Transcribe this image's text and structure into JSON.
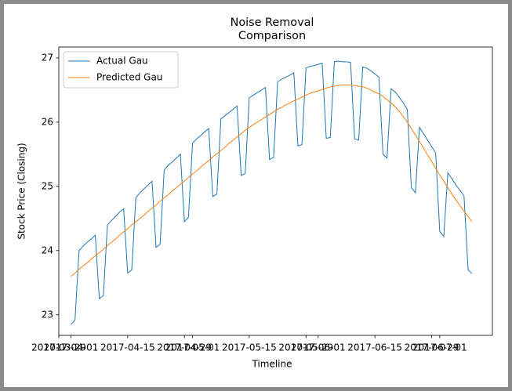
{
  "chart_data": {
    "type": "line",
    "title": "Noise Removal\nComparison",
    "x_label": "Timeline",
    "y_label": "Stock Price (Closing)",
    "x": [
      "2017-04-01",
      "2017-04-02",
      "2017-04-03",
      "2017-04-04",
      "2017-04-05",
      "2017-04-06",
      "2017-04-07",
      "2017-04-08",
      "2017-04-09",
      "2017-04-10",
      "2017-04-11",
      "2017-04-12",
      "2017-04-13",
      "2017-04-14",
      "2017-04-15",
      "2017-04-16",
      "2017-04-17",
      "2017-04-18",
      "2017-04-19",
      "2017-04-20",
      "2017-04-21",
      "2017-04-22",
      "2017-04-23",
      "2017-04-24",
      "2017-04-25",
      "2017-04-26",
      "2017-04-27",
      "2017-04-28",
      "2017-04-29",
      "2017-04-30",
      "2017-05-01",
      "2017-05-02",
      "2017-05-03",
      "2017-05-04",
      "2017-05-05",
      "2017-05-06",
      "2017-05-07",
      "2017-05-08",
      "2017-05-09",
      "2017-05-10",
      "2017-05-11",
      "2017-05-12",
      "2017-05-13",
      "2017-05-14",
      "2017-05-15",
      "2017-05-16",
      "2017-05-17",
      "2017-05-18",
      "2017-05-19",
      "2017-05-20",
      "2017-05-21",
      "2017-05-22",
      "2017-05-23",
      "2017-05-24",
      "2017-05-25",
      "2017-05-26",
      "2017-05-27",
      "2017-05-28",
      "2017-05-29",
      "2017-05-30",
      "2017-05-31",
      "2017-06-01",
      "2017-06-02",
      "2017-06-03",
      "2017-06-04",
      "2017-06-05",
      "2017-06-06",
      "2017-06-07",
      "2017-06-08",
      "2017-06-09",
      "2017-06-10",
      "2017-06-11",
      "2017-06-12",
      "2017-06-13",
      "2017-06-14",
      "2017-06-15",
      "2017-06-16",
      "2017-06-17",
      "2017-06-18",
      "2017-06-19",
      "2017-06-20",
      "2017-06-21",
      "2017-06-22",
      "2017-06-23",
      "2017-06-24",
      "2017-06-25",
      "2017-06-26",
      "2017-06-27",
      "2017-06-28",
      "2017-06-29",
      "2017-06-30",
      "2017-07-01",
      "2017-07-02",
      "2017-07-03",
      "2017-07-04",
      "2017-07-05",
      "2017-07-06",
      "2017-07-07",
      "2017-07-08",
      "2017-07-09"
    ],
    "series": [
      {
        "name": "Actual Gau",
        "color": "#1f77b4",
        "values": [
          22.85,
          22.92,
          24.0,
          24.07,
          24.13,
          24.18,
          24.24,
          23.25,
          23.3,
          24.4,
          24.47,
          24.53,
          24.6,
          24.65,
          23.65,
          23.7,
          24.82,
          24.9,
          24.96,
          25.02,
          25.08,
          24.05,
          24.1,
          25.25,
          25.33,
          25.38,
          25.44,
          25.5,
          24.45,
          24.52,
          25.67,
          25.74,
          25.79,
          25.85,
          25.9,
          24.84,
          24.88,
          26.05,
          26.1,
          26.15,
          26.2,
          26.25,
          25.17,
          25.2,
          26.38,
          26.42,
          26.46,
          26.5,
          26.54,
          25.42,
          25.45,
          26.63,
          26.67,
          26.7,
          26.73,
          26.77,
          25.63,
          25.65,
          26.84,
          26.87,
          26.88,
          26.9,
          26.92,
          25.75,
          25.76,
          26.94,
          26.95,
          26.94,
          26.94,
          26.93,
          25.74,
          25.72,
          26.86,
          26.84,
          26.8,
          26.75,
          26.7,
          25.5,
          25.44,
          26.52,
          26.47,
          26.39,
          26.3,
          26.2,
          24.98,
          24.9,
          25.92,
          25.82,
          25.72,
          25.62,
          25.52,
          24.3,
          24.22,
          25.21,
          25.12,
          25.02,
          24.94,
          24.85,
          23.7,
          23.64
        ]
      },
      {
        "name": "Predicted Gau",
        "color": "#ff7f0e",
        "values": [
          23.6,
          23.65,
          23.71,
          23.76,
          23.81,
          23.87,
          23.92,
          23.97,
          24.02,
          24.08,
          24.13,
          24.18,
          24.24,
          24.29,
          24.34,
          24.4,
          24.45,
          24.5,
          24.55,
          24.61,
          24.66,
          24.71,
          24.77,
          24.82,
          24.87,
          24.93,
          24.98,
          25.03,
          25.08,
          25.14,
          25.19,
          25.24,
          25.3,
          25.35,
          25.4,
          25.46,
          25.51,
          25.56,
          25.61,
          25.67,
          25.72,
          25.77,
          25.82,
          25.87,
          25.92,
          25.96,
          26.0,
          26.04,
          26.08,
          26.12,
          26.16,
          26.2,
          26.23,
          26.27,
          26.3,
          26.33,
          26.36,
          26.39,
          26.42,
          26.45,
          26.47,
          26.49,
          26.51,
          26.53,
          26.55,
          26.56,
          26.57,
          26.58,
          26.58,
          26.58,
          26.57,
          26.56,
          26.55,
          26.53,
          26.5,
          26.47,
          26.44,
          26.4,
          26.35,
          26.3,
          26.24,
          26.17,
          26.09,
          26.0,
          25.9,
          25.8,
          25.7,
          25.6,
          25.49,
          25.39,
          25.28,
          25.18,
          25.08,
          24.98,
          24.88,
          24.79,
          24.7,
          24.61,
          24.53,
          24.45
        ]
      }
    ],
    "xlim": [
      "2017-03-29",
      "2017-07-14"
    ],
    "xticks": [
      "2017-03-29",
      "2017-04-01",
      "2017-04-15",
      "2017-04-29",
      "2017-05-01",
      "2017-05-15",
      "2017-05-29",
      "2017-06-01",
      "2017-06-15",
      "2017-06-29",
      "2017-07-01"
    ],
    "ylim": [
      22.68,
      27.17
    ],
    "yticks": [
      23,
      24,
      25,
      26,
      27
    ],
    "legend": "upper left",
    "grid": false
  }
}
